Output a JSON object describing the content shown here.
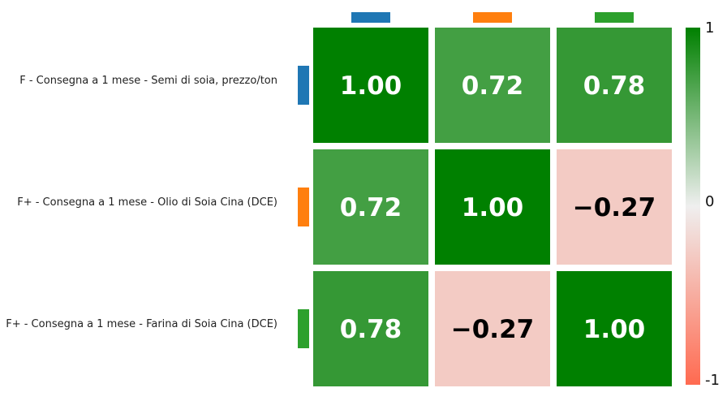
{
  "chart_data": {
    "type": "heatmap",
    "title": "",
    "rows": [
      "F - Consegna a 1 mese - Semi di soia, prezzo/ton",
      "F+ - Consegna a 1 mese - Olio di Soia Cina (DCE)",
      "F+ - Consegna a 1 mese - Farina di Soia Cina (DCE)"
    ],
    "series_colors": [
      "#1f77b4",
      "#ff7f0e",
      "#2ca02c"
    ],
    "values": [
      [
        1.0,
        0.72,
        0.78
      ],
      [
        0.72,
        1.0,
        -0.27
      ],
      [
        0.78,
        -0.27,
        1.0
      ]
    ],
    "value_labels": [
      [
        "1.00",
        "0.72",
        "0.78"
      ],
      [
        "0.72",
        "1.00",
        "−0.27"
      ],
      [
        "0.78",
        "−0.27",
        "1.00"
      ]
    ],
    "color_scale": {
      "min": -1,
      "mid": 0,
      "max": 1,
      "min_color": "#ff6a50",
      "mid_color": "#efefef",
      "max_color": "#008000",
      "tick_labels": [
        "1",
        "0",
        "-1"
      ]
    }
  }
}
